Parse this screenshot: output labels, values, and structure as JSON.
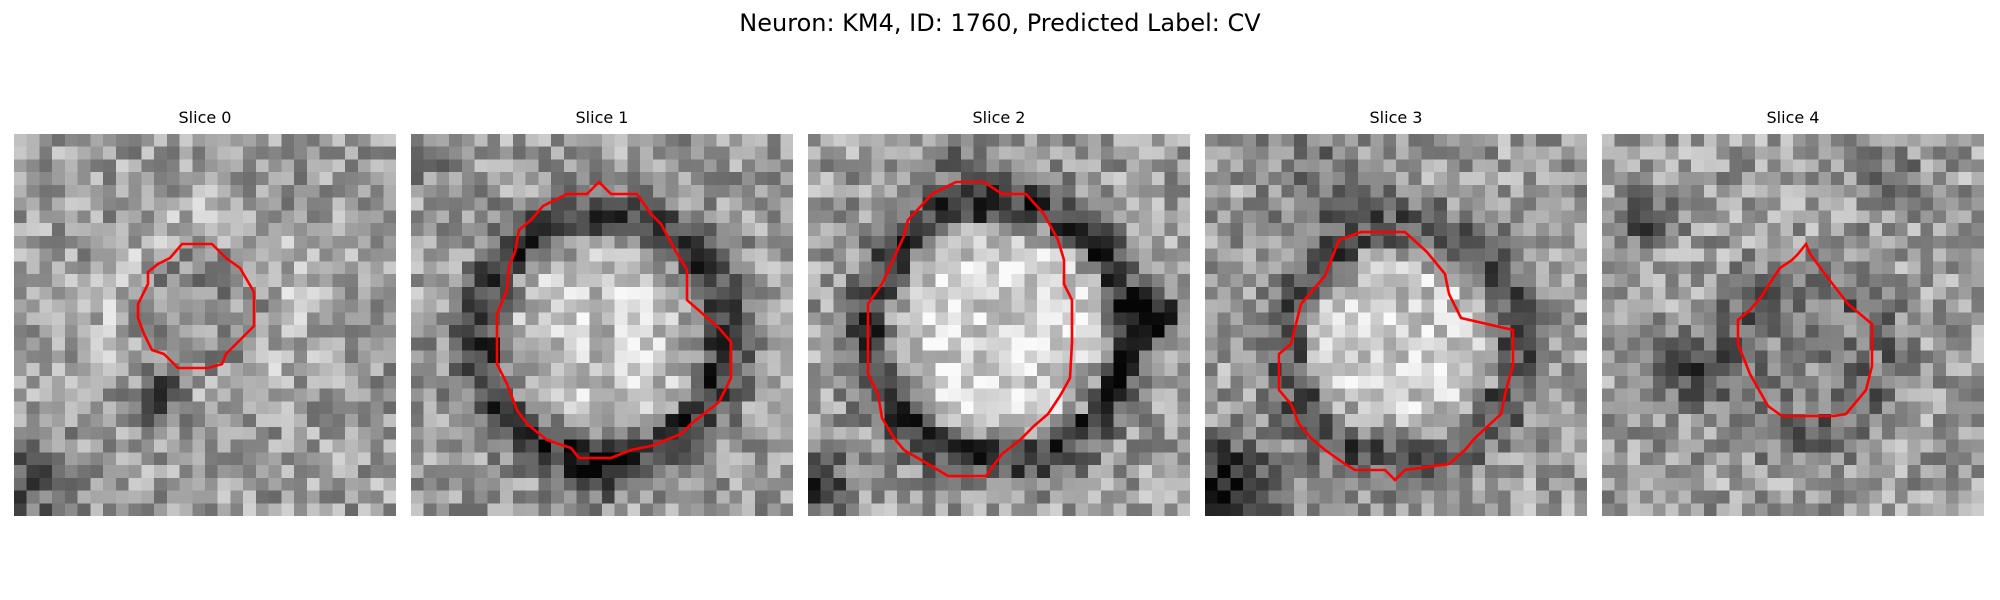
{
  "figure": {
    "title": "Neuron: KM4, ID: 1760, Predicted Label: CV",
    "contour_color": "#ff0000"
  },
  "panels": [
    {
      "title": "Slice 0"
    },
    {
      "title": "Slice 1"
    },
    {
      "title": "Slice 2"
    },
    {
      "title": "Slice 3"
    },
    {
      "title": "Slice 4"
    }
  ]
}
